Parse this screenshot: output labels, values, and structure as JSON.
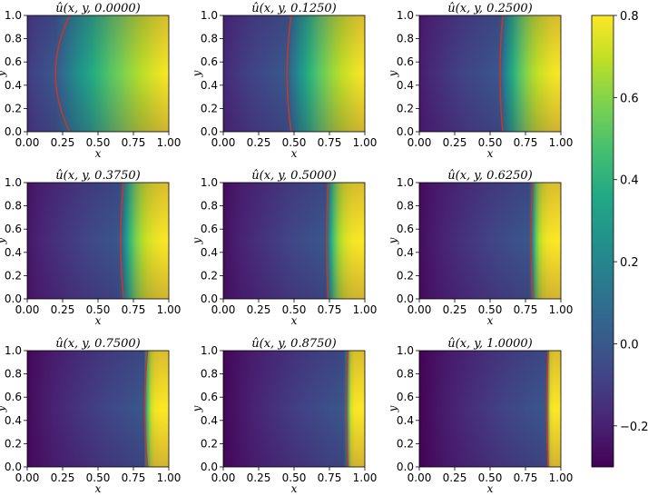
{
  "chart_data": {
    "type": "heatmap",
    "layout": {
      "rows": 3,
      "cols": 3
    },
    "field_description": "colormap viridis; red curve marks front location",
    "colormap": "viridis",
    "colorbar": {
      "vmin": -0.3,
      "vmax": 0.8,
      "ticks": [
        "−0.2",
        "0.0",
        "0.2",
        "0.4",
        "0.6",
        "0.8"
      ],
      "tick_values": [
        -0.2,
        0.0,
        0.2,
        0.4,
        0.6,
        0.8
      ]
    },
    "xlim": [
      0,
      1
    ],
    "ylim": [
      0,
      1
    ],
    "xticks": [
      "0.00",
      "0.25",
      "0.50",
      "0.75",
      "1.00"
    ],
    "yticks": [
      "0.0",
      "0.2",
      "0.4",
      "0.6",
      "0.8",
      "1.0"
    ],
    "xlabel": "x",
    "ylabel": "y",
    "front_color": "#c0392b",
    "panels": [
      {
        "title": "û(x, y, 0.0000)",
        "t": 0.0,
        "front_x_mid": 0.2,
        "front_x_edge": 0.3,
        "u_left": -0.12,
        "u_right": 0.8,
        "sharpness": 1.0
      },
      {
        "title": "û(x, y, 0.1250)",
        "t": 0.125,
        "front_x_mid": 0.45,
        "front_x_edge": 0.48,
        "u_left": -0.18,
        "u_right": 0.8,
        "sharpness": 1.6
      },
      {
        "title": "û(x, y, 0.2500)",
        "t": 0.25,
        "front_x_mid": 0.57,
        "front_x_edge": 0.59,
        "u_left": -0.22,
        "u_right": 0.8,
        "sharpness": 2.3
      },
      {
        "title": "û(x, y, 0.3750)",
        "t": 0.375,
        "front_x_mid": 0.66,
        "front_x_edge": 0.68,
        "u_left": -0.24,
        "u_right": 0.8,
        "sharpness": 3.2
      },
      {
        "title": "û(x, y, 0.5000)",
        "t": 0.5,
        "front_x_mid": 0.73,
        "front_x_edge": 0.74,
        "u_left": -0.26,
        "u_right": 0.8,
        "sharpness": 4.2
      },
      {
        "title": "û(x, y, 0.6250)",
        "t": 0.625,
        "front_x_mid": 0.79,
        "front_x_edge": 0.8,
        "u_left": -0.27,
        "u_right": 0.8,
        "sharpness": 5.5
      },
      {
        "title": "û(x, y, 0.7500)",
        "t": 0.75,
        "front_x_mid": 0.83,
        "front_x_edge": 0.85,
        "u_left": -0.28,
        "u_right": 0.8,
        "sharpness": 7.0
      },
      {
        "title": "û(x, y, 0.8750)",
        "t": 0.875,
        "front_x_mid": 0.87,
        "front_x_edge": 0.88,
        "u_left": -0.29,
        "u_right": 0.8,
        "sharpness": 8.5
      },
      {
        "title": "û(x, y, 1.0000)",
        "t": 1.0,
        "front_x_mid": 0.9,
        "front_x_edge": 0.91,
        "u_left": -0.3,
        "u_right": 0.8,
        "sharpness": 10.0
      }
    ]
  }
}
